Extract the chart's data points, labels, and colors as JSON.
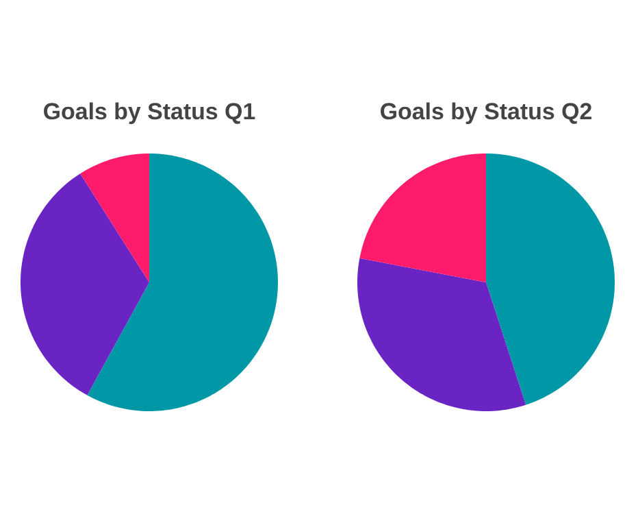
{
  "chart_data": [
    {
      "type": "pie",
      "title": "Goals by Status Q1",
      "categories": [
        null,
        null,
        null
      ],
      "values": [
        58,
        33,
        9
      ],
      "colors": [
        "#0097a7",
        "#6a24c4",
        "#ff1b6b"
      ]
    },
    {
      "type": "pie",
      "title": "Goals by Status Q2",
      "categories": [
        null,
        null,
        null
      ],
      "values": [
        45,
        33,
        22
      ],
      "colors": [
        "#0097a7",
        "#6a24c4",
        "#ff1b6b"
      ]
    }
  ]
}
